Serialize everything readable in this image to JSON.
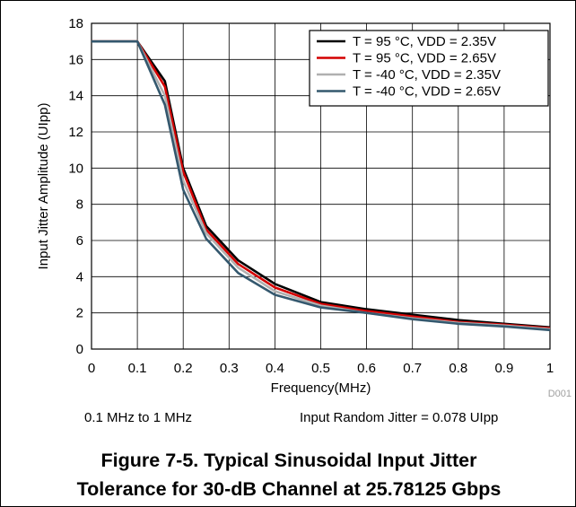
{
  "chart_data": {
    "type": "line",
    "xlabel": "Frequency(MHz)",
    "ylabel": "Input Jitter Amplitude (UIpp)",
    "xlim": [
      0,
      1
    ],
    "ylim": [
      0,
      18
    ],
    "xticks": [
      0,
      0.1,
      0.2,
      0.3,
      0.4,
      0.5,
      0.6,
      0.7,
      0.8,
      0.9,
      1
    ],
    "xtick_labels": [
      "0",
      "0.1",
      "0.2",
      "0.3",
      "0.4",
      "0.5",
      "0.6",
      "0.7",
      "0.8",
      "0.9",
      "1"
    ],
    "yticks": [
      0,
      2,
      4,
      6,
      8,
      10,
      12,
      14,
      16,
      18
    ],
    "ytick_labels": [
      "0",
      "2",
      "4",
      "6",
      "8",
      "10",
      "12",
      "14",
      "16",
      "18"
    ],
    "grid": true,
    "legend_position": "top-right",
    "watermark": "D001",
    "series": [
      {
        "name": "T = 95 °C, VDD = 2.35V",
        "color": "#000000",
        "x": [
          0,
          0.1,
          0.16,
          0.2,
          0.25,
          0.32,
          0.4,
          0.5,
          0.6,
          0.7,
          0.8,
          0.9,
          1
        ],
        "values": [
          17,
          17,
          14.8,
          10,
          6.8,
          4.9,
          3.6,
          2.6,
          2.2,
          1.9,
          1.6,
          1.4,
          1.2
        ]
      },
      {
        "name": "T = 95 °C, VDD = 2.65V",
        "color": "#d40000",
        "x": [
          0,
          0.1,
          0.16,
          0.2,
          0.25,
          0.32,
          0.4,
          0.5,
          0.6,
          0.7,
          0.8,
          0.9,
          1
        ],
        "values": [
          17,
          17,
          14.5,
          9.8,
          6.6,
          4.7,
          3.4,
          2.5,
          2.1,
          1.8,
          1.5,
          1.35,
          1.15
        ]
      },
      {
        "name": "T = -40 °C, VDD = 2.35V",
        "color": "#b0b0b0",
        "x": [
          0,
          0.1,
          0.16,
          0.2,
          0.25,
          0.32,
          0.4,
          0.5,
          0.6,
          0.7,
          0.8,
          0.9,
          1
        ],
        "values": [
          17,
          17,
          14.0,
          9.3,
          6.4,
          4.5,
          3.2,
          2.4,
          2.0,
          1.7,
          1.45,
          1.3,
          1.1
        ]
      },
      {
        "name": "T = -40 °C, VDD = 2.65V",
        "color": "#34586e",
        "x": [
          0,
          0.1,
          0.16,
          0.2,
          0.25,
          0.32,
          0.4,
          0.5,
          0.6,
          0.7,
          0.8,
          0.9,
          1
        ],
        "values": [
          17,
          17,
          13.5,
          8.8,
          6.1,
          4.2,
          3.0,
          2.3,
          2.0,
          1.65,
          1.4,
          1.25,
          1.05
        ]
      }
    ]
  },
  "notes": {
    "range": "0.1 MHz to 1 MHz",
    "random_jitter": "Input Random Jitter = 0.078 UIpp"
  },
  "caption": {
    "line1": "Figure 7-5. Typical Sinusoidal Input Jitter",
    "line2": "Tolerance for 30-dB Channel at 25.78125 Gbps"
  }
}
